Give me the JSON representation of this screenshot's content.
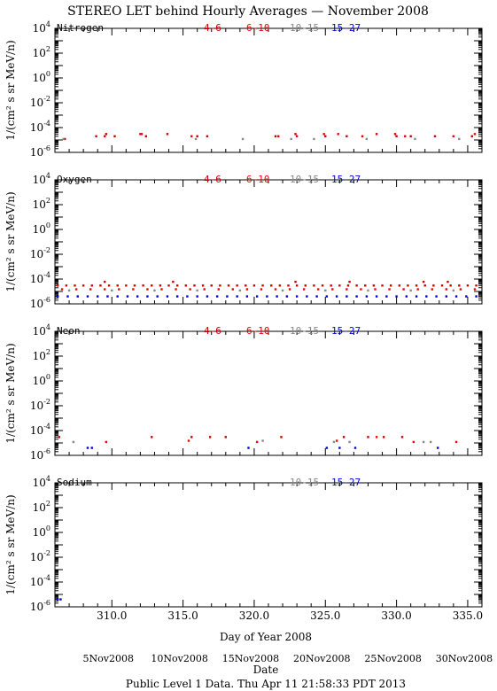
{
  "page": {
    "title": "STEREO LET behind Hourly Averages — November 2008",
    "footer": "Public Level 1 Data. Thu Apr 11 21:58:33 PDT 2013",
    "ylabel": "1/(cm² s sr MeV/n)",
    "xlabel_day": "Day of Year 2008",
    "xlabel_date": "Date"
  },
  "colors": {
    "e4_6": "#cc0000",
    "e6_10": "#ee0000",
    "e10_15": "#888888",
    "e15_27": "#0000dd"
  },
  "chart_data": [
    {
      "type": "scatter",
      "element": "Nitrogen",
      "legend": [
        "4-6",
        "6-10",
        "10-15",
        "15-27"
      ],
      "xlim": [
        306,
        336
      ],
      "ylim_log10": [
        -6,
        4
      ],
      "y_tick_labels": [
        "10^-6",
        "10^-4",
        "10^-2",
        "10^0",
        "10^2",
        "10^4"
      ],
      "series": [
        {
          "name": "4-6",
          "points": [
            [
              306.7,
              1.2e-05
            ],
            [
              308.9,
              2e-05
            ],
            [
              309.6,
              3e-05
            ],
            [
              310.2,
              2e-05
            ],
            [
              312.0,
              3e-05
            ],
            [
              312.4,
              2e-05
            ],
            [
              313.9,
              3e-05
            ],
            [
              316.0,
              2e-05
            ],
            [
              316.7,
              2e-05
            ],
            [
              321.5,
              2e-05
            ],
            [
              322.9,
              3e-05
            ],
            [
              325.0,
              2e-05
            ],
            [
              326.5,
              2e-05
            ],
            [
              328.6,
              3e-05
            ],
            [
              330.0,
              2e-05
            ],
            [
              331.0,
              2e-05
            ],
            [
              332.7,
              2e-05
            ],
            [
              335.3,
              2e-05
            ]
          ]
        },
        {
          "name": "6-10",
          "points": [
            [
              309.5,
              2e-05
            ],
            [
              312.1,
              3e-05
            ],
            [
              315.6,
              2e-05
            ],
            [
              321.7,
              2e-05
            ],
            [
              323.0,
              2e-05
            ],
            [
              324.9,
              3e-05
            ],
            [
              325.9,
              3e-05
            ],
            [
              327.6,
              2e-05
            ],
            [
              329.9,
              3e-05
            ],
            [
              330.6,
              2e-05
            ],
            [
              334.0,
              2e-05
            ],
            [
              335.5,
              3e-05
            ]
          ]
        },
        {
          "name": "10-15",
          "points": [
            [
              306.6,
              1.2e-05
            ],
            [
              315.9,
              1.2e-05
            ],
            [
              319.2,
              1.2e-05
            ],
            [
              322.6,
              1.2e-05
            ],
            [
              324.2,
              1.2e-05
            ],
            [
              327.9,
              1.2e-05
            ],
            [
              331.3,
              1.2e-05
            ],
            [
              334.4,
              1.2e-05
            ]
          ]
        },
        {
          "name": "15-27",
          "points": []
        }
      ]
    },
    {
      "type": "scatter",
      "element": "Oxygen",
      "legend": [
        "4-6",
        "6-10",
        "10-15",
        "15-27"
      ],
      "xlim": [
        306,
        336
      ],
      "ylim_log10": [
        -6,
        4
      ],
      "y_tick_labels": [
        "10^-6",
        "10^-4",
        "10^-2",
        "10^0",
        "10^2",
        "10^4"
      ],
      "series": [
        {
          "name": "4-6",
          "points": [
            [
              306.2,
              3e-05
            ],
            [
              306.8,
              3e-05
            ],
            [
              307.4,
              3e-05
            ],
            [
              308.0,
              3e-05
            ],
            [
              308.6,
              3e-05
            ],
            [
              309.2,
              3e-05
            ],
            [
              309.8,
              3e-05
            ],
            [
              310.4,
              3e-05
            ],
            [
              311.0,
              3e-05
            ],
            [
              311.6,
              3e-05
            ],
            [
              312.2,
              3e-05
            ],
            [
              312.8,
              3e-05
            ],
            [
              313.4,
              3e-05
            ],
            [
              314.0,
              3e-05
            ],
            [
              314.6,
              3e-05
            ],
            [
              315.2,
              3e-05
            ],
            [
              315.8,
              3e-05
            ],
            [
              316.4,
              3e-05
            ],
            [
              317.0,
              3e-05
            ],
            [
              317.6,
              3e-05
            ],
            [
              318.2,
              3e-05
            ],
            [
              318.8,
              3e-05
            ],
            [
              319.4,
              3e-05
            ],
            [
              320.0,
              3e-05
            ],
            [
              320.6,
              3e-05
            ],
            [
              321.2,
              3e-05
            ],
            [
              321.8,
              3e-05
            ],
            [
              322.4,
              3e-05
            ],
            [
              323.0,
              3e-05
            ],
            [
              323.6,
              3e-05
            ],
            [
              324.2,
              3e-05
            ],
            [
              324.8,
              3e-05
            ],
            [
              325.4,
              3e-05
            ],
            [
              326.0,
              3e-05
            ],
            [
              326.6,
              3e-05
            ],
            [
              327.2,
              3e-05
            ],
            [
              327.8,
              3e-05
            ],
            [
              328.4,
              3e-05
            ],
            [
              329.0,
              3e-05
            ],
            [
              329.6,
              3e-05
            ],
            [
              330.2,
              3e-05
            ],
            [
              330.8,
              3e-05
            ],
            [
              331.4,
              3e-05
            ],
            [
              332.0,
              3e-05
            ],
            [
              332.6,
              3e-05
            ],
            [
              333.2,
              3e-05
            ],
            [
              333.8,
              3e-05
            ],
            [
              334.4,
              3e-05
            ],
            [
              335.0,
              3e-05
            ],
            [
              335.6,
              3e-05
            ],
            [
              309.5,
              6e-05
            ],
            [
              314.3,
              6e-05
            ],
            [
              322.9,
              6e-05
            ],
            [
              326.7,
              6e-05
            ],
            [
              331.9,
              6e-05
            ],
            [
              333.6,
              6e-05
            ]
          ]
        },
        {
          "name": "6-10",
          "points": [
            [
              306.5,
              1.5e-05
            ],
            [
              307.5,
              1.5e-05
            ],
            [
              308.5,
              1.5e-05
            ],
            [
              309.5,
              1.5e-05
            ],
            [
              310.5,
              1.5e-05
            ],
            [
              311.5,
              1.5e-05
            ],
            [
              312.5,
              1.5e-05
            ],
            [
              313.5,
              1.5e-05
            ],
            [
              314.5,
              1.5e-05
            ],
            [
              315.5,
              1.5e-05
            ],
            [
              316.5,
              1.5e-05
            ],
            [
              317.5,
              1.5e-05
            ],
            [
              318.5,
              1.5e-05
            ],
            [
              319.5,
              1.5e-05
            ],
            [
              320.5,
              1.5e-05
            ],
            [
              321.5,
              1.5e-05
            ],
            [
              322.5,
              1.5e-05
            ],
            [
              323.5,
              1.5e-05
            ],
            [
              324.5,
              1.5e-05
            ],
            [
              325.5,
              1.5e-05
            ],
            [
              326.5,
              1.5e-05
            ],
            [
              327.5,
              1.5e-05
            ],
            [
              328.5,
              1.5e-05
            ],
            [
              329.5,
              1.5e-05
            ],
            [
              330.5,
              1.5e-05
            ],
            [
              331.5,
              1.5e-05
            ],
            [
              332.5,
              1.5e-05
            ],
            [
              333.5,
              1.5e-05
            ],
            [
              334.5,
              1.5e-05
            ],
            [
              335.5,
              1.5e-05
            ]
          ]
        },
        {
          "name": "10-15",
          "points": [
            [
              307.0,
              1.2e-05
            ],
            [
              310.0,
              1.2e-05
            ],
            [
              313.0,
              1.2e-05
            ],
            [
              316.0,
              1.2e-05
            ],
            [
              319.0,
              1.2e-05
            ],
            [
              322.0,
              1.2e-05
            ],
            [
              325.0,
              1.2e-05
            ],
            [
              328.0,
              1.2e-05
            ],
            [
              331.0,
              1.2e-05
            ],
            [
              334.0,
              1.2e-05
            ]
          ]
        },
        {
          "name": "15-27",
          "points": [
            [
              306.2,
              4e-06
            ],
            [
              306.9,
              4e-06
            ],
            [
              307.6,
              4e-06
            ],
            [
              308.3,
              4e-06
            ],
            [
              309.0,
              4e-06
            ],
            [
              309.7,
              4e-06
            ],
            [
              310.4,
              4e-06
            ],
            [
              311.1,
              4e-06
            ],
            [
              311.8,
              4e-06
            ],
            [
              312.5,
              4e-06
            ],
            [
              313.2,
              4e-06
            ],
            [
              313.9,
              4e-06
            ],
            [
              314.6,
              4e-06
            ],
            [
              315.3,
              4e-06
            ],
            [
              316.0,
              4e-06
            ],
            [
              316.7,
              4e-06
            ],
            [
              317.4,
              4e-06
            ],
            [
              318.1,
              4e-06
            ],
            [
              318.8,
              4e-06
            ],
            [
              319.5,
              4e-06
            ],
            [
              320.2,
              4e-06
            ],
            [
              320.9,
              4e-06
            ],
            [
              321.6,
              4e-06
            ],
            [
              322.3,
              4e-06
            ],
            [
              323.0,
              4e-06
            ],
            [
              323.7,
              4e-06
            ],
            [
              324.4,
              4e-06
            ],
            [
              325.1,
              4e-06
            ],
            [
              325.8,
              4e-06
            ],
            [
              326.5,
              4e-06
            ],
            [
              327.2,
              4e-06
            ],
            [
              327.9,
              4e-06
            ],
            [
              328.6,
              4e-06
            ],
            [
              329.3,
              4e-06
            ],
            [
              330.0,
              4e-06
            ],
            [
              330.7,
              4e-06
            ],
            [
              331.4,
              4e-06
            ],
            [
              332.1,
              4e-06
            ],
            [
              332.8,
              4e-06
            ],
            [
              333.5,
              4e-06
            ],
            [
              334.2,
              4e-06
            ],
            [
              334.9,
              4e-06
            ],
            [
              335.6,
              4e-06
            ]
          ]
        }
      ]
    },
    {
      "type": "scatter",
      "element": "Neon",
      "legend": [
        "4-6",
        "6-10",
        "10-15",
        "15-27"
      ],
      "xlim": [
        306,
        336
      ],
      "ylim_log10": [
        -6,
        4
      ],
      "y_tick_labels": [
        "10^-6",
        "10^-4",
        "10^-2",
        "10^0",
        "10^2",
        "10^4"
      ],
      "series": [
        {
          "name": "4-6",
          "points": [
            [
              306.3,
              3e-05
            ],
            [
              312.8,
              3e-05
            ],
            [
              315.6,
              3e-05
            ],
            [
              316.9,
              3e-05
            ],
            [
              318.0,
              3e-05
            ],
            [
              321.9,
              3e-05
            ],
            [
              326.3,
              3e-05
            ],
            [
              328.0,
              3e-05
            ],
            [
              329.1,
              3e-05
            ],
            [
              330.4,
              3e-05
            ]
          ]
        },
        {
          "name": "6-10",
          "points": [
            [
              309.6,
              1.2e-05
            ],
            [
              315.4,
              1.5e-05
            ],
            [
              320.2,
              1.2e-05
            ],
            [
              325.8,
              1.5e-05
            ],
            [
              328.6,
              3e-05
            ],
            [
              331.2,
              1.2e-05
            ],
            [
              334.2,
              1.2e-05
            ]
          ]
        },
        {
          "name": "10-15",
          "points": [
            [
              307.3,
              1.2e-05
            ],
            [
              320.6,
              1.5e-05
            ],
            [
              325.6,
              1.2e-05
            ],
            [
              326.7,
              1.2e-05
            ],
            [
              331.9,
              1.2e-05
            ],
            [
              332.4,
              1.2e-05
            ]
          ]
        },
        {
          "name": "15-27",
          "points": [
            [
              308.3,
              4e-06
            ],
            [
              308.6,
              4e-06
            ],
            [
              319.6,
              4e-06
            ],
            [
              325.1,
              4e-06
            ],
            [
              326.0,
              4e-06
            ],
            [
              327.1,
              4e-06
            ],
            [
              332.9,
              4e-06
            ]
          ]
        }
      ]
    },
    {
      "type": "scatter",
      "element": "Sodium",
      "legend": [
        "10-15",
        "15-27"
      ],
      "xlim": [
        306,
        336
      ],
      "ylim_log10": [
        -6,
        4
      ],
      "y_tick_labels": [
        "10^-6",
        "10^-4",
        "10^-2",
        "10^0",
        "10^2",
        "10^4"
      ],
      "series": [
        {
          "name": "10-15",
          "points": []
        },
        {
          "name": "15-27",
          "points": [
            [
              306.2,
              4e-06
            ],
            [
              306.4,
              4e-06
            ]
          ]
        }
      ]
    }
  ],
  "x_axis": {
    "day_ticks": [
      310,
      315,
      320,
      325,
      330,
      335
    ],
    "day_tick_labels": [
      "310.0",
      "315.0",
      "320.0",
      "325.0",
      "330.0",
      "335.0"
    ],
    "date_ticks": [
      310,
      315,
      320,
      325,
      330,
      335
    ],
    "date_tick_labels": [
      "5Nov2008",
      "10Nov2008",
      "15Nov2008",
      "20Nov2008",
      "25Nov2008",
      "30Nov2008"
    ]
  }
}
